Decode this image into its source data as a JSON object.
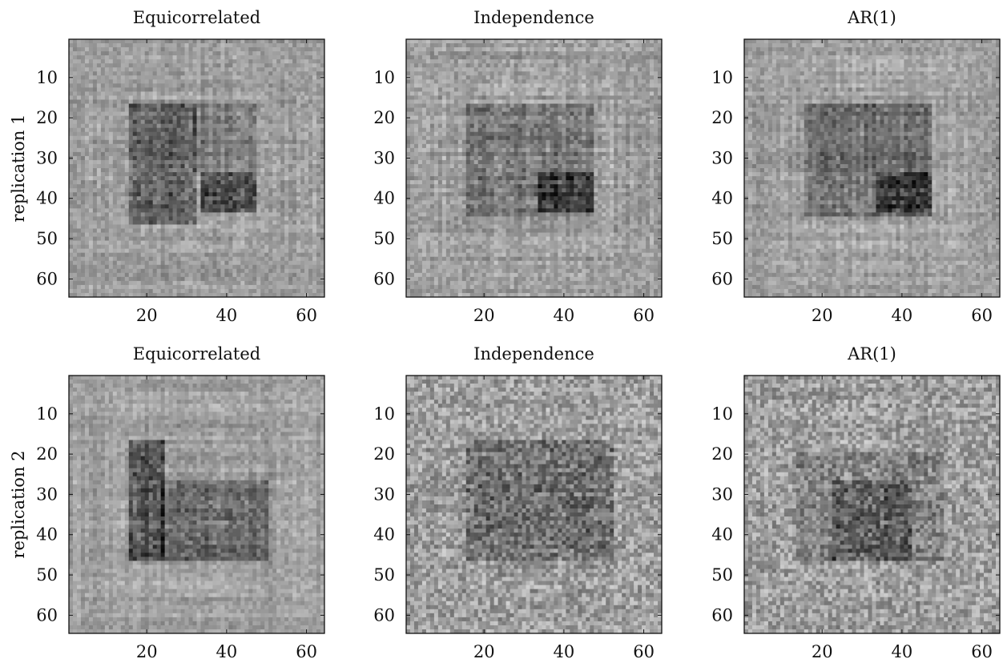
{
  "figure": {
    "row_labels": [
      "replication 1",
      "replication 2"
    ]
  },
  "chart_data": [
    {
      "type": "heatmap",
      "title": "Equicorrelated",
      "ylabel": "replication 1",
      "xlim": [
        1,
        64
      ],
      "ylim": [
        64,
        1
      ],
      "xticks": [
        20,
        40,
        60
      ],
      "yticks": [
        10,
        20,
        30,
        40,
        50,
        60
      ],
      "colormap": "gray",
      "grid": false,
      "pattern": {
        "seed": 11,
        "noise": 0.2,
        "stripe": 0.55,
        "blocks": [
          {
            "rows": [
              17,
              46
            ],
            "cols": [
              16,
              32
            ],
            "level": -0.55
          },
          {
            "rows": [
              34,
              43
            ],
            "cols": [
              34,
              47
            ],
            "level": -0.75
          },
          {
            "rows": [
              17,
              33
            ],
            "cols": [
              32,
              47
            ],
            "level": -0.3
          }
        ]
      }
    },
    {
      "type": "heatmap",
      "title": "Independence",
      "ylabel": "",
      "xlim": [
        1,
        64
      ],
      "ylim": [
        64,
        1
      ],
      "xticks": [
        20,
        40,
        60
      ],
      "yticks": [
        10,
        20,
        30,
        40,
        50,
        60
      ],
      "colormap": "gray",
      "grid": false,
      "pattern": {
        "seed": 23,
        "noise": 0.22,
        "stripe": 0.6,
        "blocks": [
          {
            "rows": [
              17,
              44
            ],
            "cols": [
              16,
              47
            ],
            "level": -0.35
          },
          {
            "rows": [
              34,
              43
            ],
            "cols": [
              34,
              47
            ],
            "level": -0.55
          }
        ]
      }
    },
    {
      "type": "heatmap",
      "title": "AR(1)",
      "ylabel": "",
      "xlim": [
        1,
        64
      ],
      "ylim": [
        64,
        1
      ],
      "xticks": [
        20,
        40,
        60
      ],
      "yticks": [
        10,
        20,
        30,
        40,
        50,
        60
      ],
      "colormap": "gray",
      "grid": false,
      "pattern": {
        "seed": 37,
        "noise": 0.2,
        "stripe": 0.58,
        "blocks": [
          {
            "rows": [
              17,
              44
            ],
            "cols": [
              16,
              47
            ],
            "level": -0.4
          },
          {
            "rows": [
              34,
              43
            ],
            "cols": [
              34,
              47
            ],
            "level": -0.6
          }
        ]
      }
    },
    {
      "type": "heatmap",
      "title": "Equicorrelated",
      "ylabel": "replication 2",
      "xlim": [
        1,
        64
      ],
      "ylim": [
        64,
        1
      ],
      "xticks": [
        20,
        40,
        60
      ],
      "yticks": [
        10,
        20,
        30,
        40,
        50,
        60
      ],
      "colormap": "gray",
      "grid": false,
      "pattern": {
        "seed": 41,
        "noise": 0.18,
        "stripe": 0.55,
        "blocks": [
          {
            "rows": [
              17,
              46
            ],
            "cols": [
              16,
              24
            ],
            "level": -0.7
          },
          {
            "rows": [
              27,
              46
            ],
            "cols": [
              24,
              50
            ],
            "level": -0.5
          }
        ]
      }
    },
    {
      "type": "heatmap",
      "title": "Independence",
      "ylabel": "",
      "xlim": [
        1,
        64
      ],
      "ylim": [
        64,
        1
      ],
      "xticks": [
        20,
        40,
        60
      ],
      "yticks": [
        10,
        20,
        30,
        40,
        50,
        60
      ],
      "colormap": "gray",
      "grid": false,
      "pattern": {
        "seed": 53,
        "noise": 0.38,
        "stripe": 0.35,
        "blocks": [
          {
            "rows": [
              17,
              46
            ],
            "cols": [
              16,
              52
            ],
            "level": -0.4
          }
        ]
      }
    },
    {
      "type": "heatmap",
      "title": "AR(1)",
      "ylabel": "",
      "xlim": [
        1,
        64
      ],
      "ylim": [
        64,
        1
      ],
      "xticks": [
        20,
        40,
        60
      ],
      "yticks": [
        10,
        20,
        30,
        40,
        50,
        60
      ],
      "colormap": "gray",
      "grid": false,
      "pattern": {
        "seed": 67,
        "noise": 0.38,
        "stripe": 0.3,
        "blocks": [
          {
            "rows": [
              20,
              46
            ],
            "cols": [
              14,
              50
            ],
            "level": -0.25
          },
          {
            "rows": [
              27,
              46
            ],
            "cols": [
              23,
              42
            ],
            "level": -0.35
          }
        ]
      }
    }
  ]
}
